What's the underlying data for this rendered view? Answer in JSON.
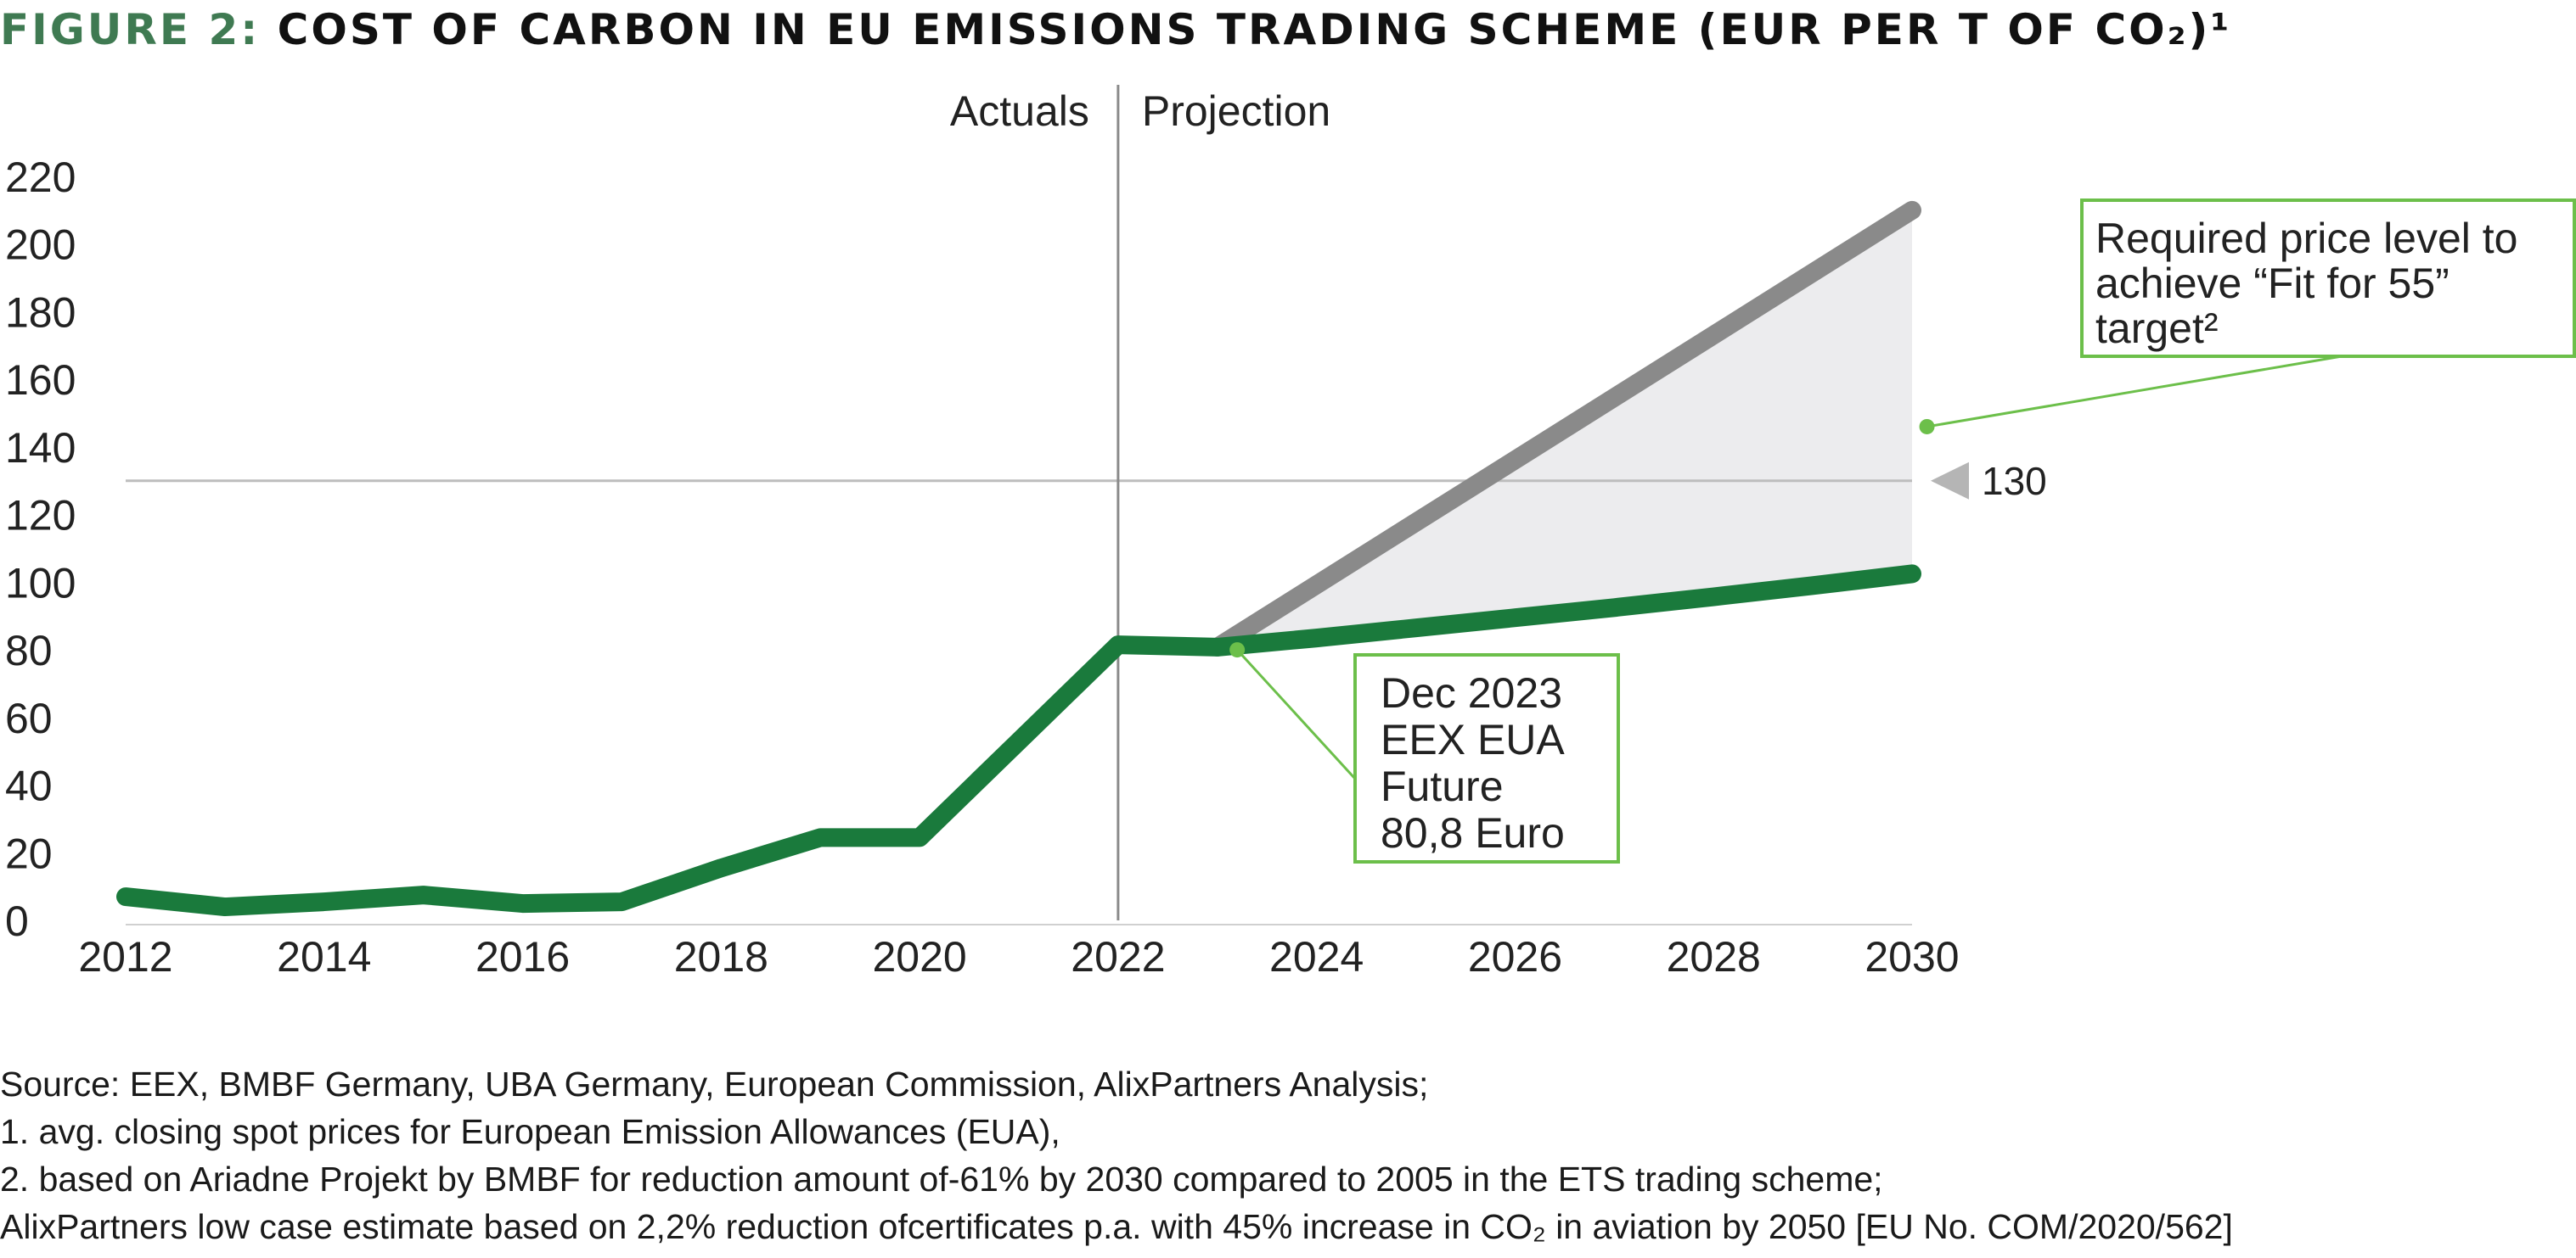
{
  "title": {
    "prefix": "FIGURE 2:",
    "main": "COST OF CARBON IN EU EMISSIONS TRADING SCHEME (EUR PER T OF CO₂)¹"
  },
  "colors": {
    "actual_line": "#1a7a3c",
    "high_projection": "#8a8a8a",
    "band_fill": "#ececee",
    "annotation_border": "#6cbf4a",
    "divider": "#8a8a8a",
    "reference_line": "#bdbdbd"
  },
  "chart_data": {
    "type": "line",
    "title": "",
    "xlabel": "",
    "ylabel": "",
    "xlim": [
      2012,
      2030
    ],
    "ylim": [
      0,
      220
    ],
    "x_ticks": [
      "2012",
      "2014",
      "2016",
      "2018",
      "2020",
      "2022",
      "2024",
      "2026",
      "2028",
      "2030"
    ],
    "y_ticks": [
      "0",
      "20",
      "40",
      "60",
      "80",
      "100",
      "120",
      "140",
      "160",
      "180",
      "200",
      "220"
    ],
    "series": [
      {
        "key": "actual",
        "x": [
          2012,
          2013,
          2014,
          2015,
          2016,
          2017,
          2018,
          2019,
          2020,
          2021,
          2022,
          2023,
          2024,
          2025,
          2026,
          2027,
          2028,
          2029,
          2030
        ],
        "y": [
          7,
          4,
          5.5,
          7.5,
          5,
          5.5,
          15.5,
          24.5,
          24.5,
          53,
          81.5,
          80.8,
          83.5,
          86.5,
          89.5,
          92.5,
          95.7,
          99,
          102.5
        ]
      },
      {
        "key": "high_case",
        "x": [
          2023,
          2030
        ],
        "y": [
          80.8,
          210
        ]
      }
    ],
    "divider": {
      "x": 2022,
      "left_label": "Actuals",
      "right_label": "Projection"
    },
    "reference_line": {
      "y": 130,
      "label": "130"
    },
    "annotations": {
      "fit_for_55": {
        "lines": [
          "Required price level to",
          "achieve “Fit for 55”",
          "target²"
        ],
        "point_x": 2030.15,
        "point_y": 146
      },
      "eex_future": {
        "lines": [
          "Dec 2023",
          "EEX EUA",
          "Future",
          "80,8 Euro"
        ],
        "point_x": 2023.2,
        "point_y": 80
      }
    }
  },
  "footnotes": {
    "source": "Source: EEX, BMBF Germany, UBA Germany, European Commission, AlixPartners Analysis;",
    "note1": "1. avg. closing spot prices for European Emission Allowances (EUA),",
    "note2": "2. based on Ariadne Projekt by BMBF for reduction amount of-61% by 2030 compared to 2005 in the ETS trading scheme;",
    "note3": "AlixPartners low case estimate based on 2,2% reduction ofcertificates p.a. with 45% increase in CO₂ in aviation by 2050 [EU No. COM/2020/562]"
  }
}
